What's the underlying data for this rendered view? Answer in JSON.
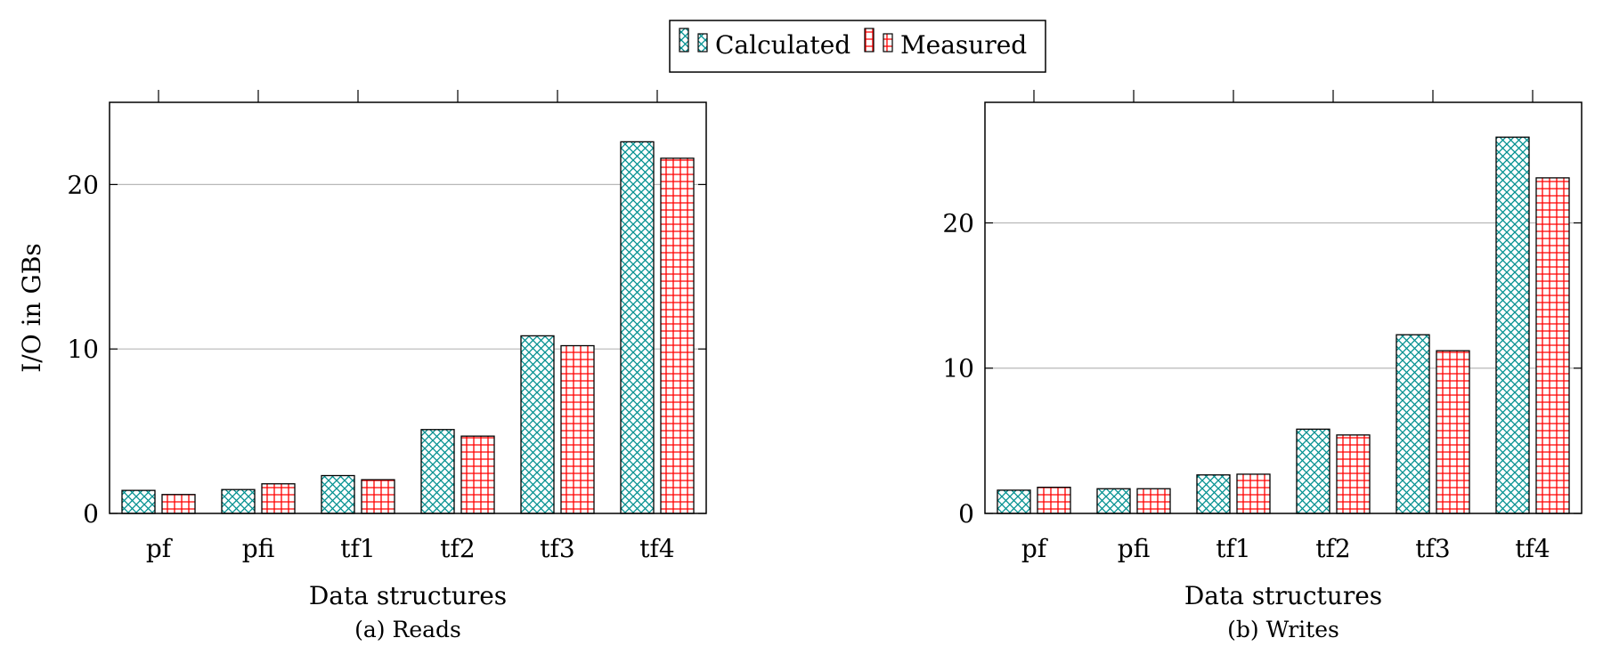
{
  "legend": {
    "position": "top-center",
    "items": [
      {
        "label": "Calculated",
        "color": "#009090",
        "pattern": "crosshatch"
      },
      {
        "label": "Measured",
        "color": "#ff0000",
        "pattern": "grid"
      }
    ]
  },
  "chart_data": [
    {
      "type": "bar",
      "title": "",
      "caption": "(a) Reads",
      "xlabel": "Data structures",
      "ylabel": "I/O in GBs",
      "categories": [
        "pf",
        "pfi",
        "tf1",
        "tf2",
        "tf3",
        "tf4"
      ],
      "series": [
        {
          "name": "Calculated",
          "values": [
            1.4,
            1.45,
            2.3,
            5.1,
            10.8,
            22.6
          ]
        },
        {
          "name": "Measured",
          "values": [
            1.15,
            1.8,
            2.05,
            4.7,
            10.2,
            21.6
          ]
        }
      ],
      "ylim": [
        0,
        25
      ],
      "yticks": [
        0,
        10,
        20
      ],
      "grid": true
    },
    {
      "type": "bar",
      "title": "",
      "caption": "(b) Writes",
      "xlabel": "Data structures",
      "ylabel": "",
      "categories": [
        "pf",
        "pfi",
        "tf1",
        "tf2",
        "tf3",
        "tf4"
      ],
      "series": [
        {
          "name": "Calculated",
          "values": [
            1.6,
            1.7,
            2.65,
            5.8,
            12.3,
            25.9
          ]
        },
        {
          "name": "Measured",
          "values": [
            1.8,
            1.7,
            2.7,
            5.4,
            11.2,
            23.1
          ]
        }
      ],
      "ylim": [
        0,
        28.3
      ],
      "yticks": [
        0,
        10,
        20
      ],
      "grid": true
    }
  ]
}
